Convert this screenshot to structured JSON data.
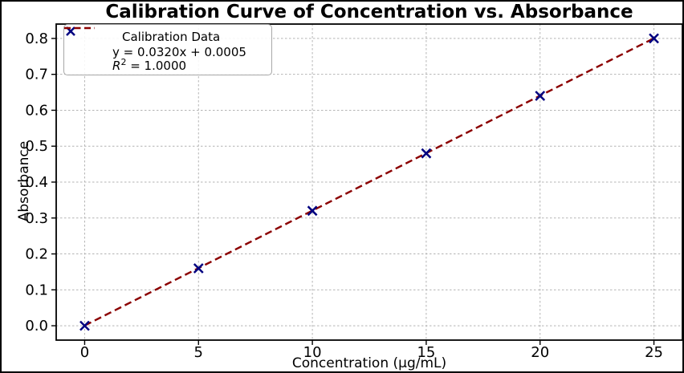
{
  "chart_data": {
    "type": "scatter",
    "title": "Calibration Curve of Concentration vs. Absorbance",
    "xlabel": "Concentration (µg/mL)",
    "ylabel": "Absorbance",
    "series": [
      {
        "name": "Calibration Data",
        "marker": "x",
        "color": "#000080",
        "x": [
          0,
          5,
          10,
          15,
          20,
          25
        ],
        "y": [
          0.0,
          0.16,
          0.32,
          0.48,
          0.64,
          0.8
        ]
      }
    ],
    "fit_line": {
      "equation": "y = 0.0320x + 0.0005",
      "slope": 0.032,
      "intercept": 0.0005,
      "r_squared": "1.0000",
      "color": "#8b0000",
      "style": "dashed",
      "x_start": 0,
      "x_end": 25
    },
    "x_ticks": [
      0,
      5,
      10,
      15,
      20,
      25
    ],
    "x_tick_labels": [
      "0",
      "5",
      "10",
      "15",
      "20",
      "25"
    ],
    "y_ticks": [
      0.0,
      0.1,
      0.2,
      0.3,
      0.4,
      0.5,
      0.6,
      0.7,
      0.8
    ],
    "y_tick_labels": [
      "0.0",
      "0.1",
      "0.2",
      "0.3",
      "0.4",
      "0.5",
      "0.6",
      "0.7",
      "0.8"
    ],
    "xlim": [
      -1.25,
      26.25
    ],
    "ylim": [
      -0.04,
      0.84
    ],
    "grid": true,
    "grid_color": "#b4b4b4",
    "spine_color": "#000000",
    "legend": {
      "position": "upper left",
      "entries": [
        {
          "label": "Calibration Data"
        },
        {
          "label_line1": "y = 0.0320x + 0.0005",
          "label_line2_r": "R",
          "label_line2_sup": "2",
          "label_line2_rest": " = 1.0000"
        }
      ]
    }
  }
}
